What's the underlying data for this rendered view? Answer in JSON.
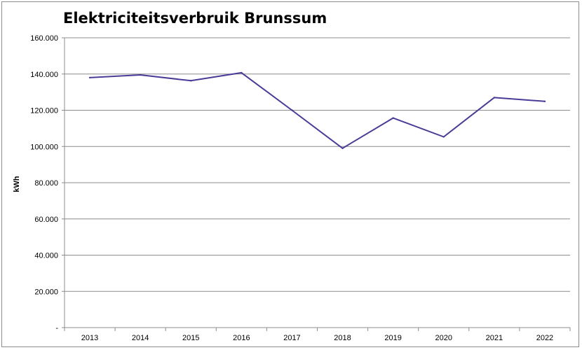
{
  "chart_data": {
    "type": "line",
    "title": "Elektriciteitsverbruik Brunssum",
    "xlabel": "",
    "ylabel": "kWh",
    "categories": [
      "2013",
      "2014",
      "2015",
      "2016",
      "2017",
      "2018",
      "2019",
      "2020",
      "2021",
      "2022"
    ],
    "series": [
      {
        "values": [
          138000,
          139500,
          136300,
          140700,
          120000,
          99000,
          115700,
          105300,
          127000,
          124900
        ]
      }
    ],
    "ylim": [
      0,
      160000
    ],
    "yticks": [
      0,
      20000,
      40000,
      60000,
      80000,
      100000,
      120000,
      140000,
      160000
    ],
    "ytick_labels": [
      "-",
      "20.000",
      "40.000",
      "60.000",
      "80.000",
      "100.000",
      "120.000",
      "140.000",
      "160.000"
    ],
    "grid": true,
    "legend": "none",
    "colors": {
      "line": "#4b3a96",
      "grid": "#8c8c8c",
      "axis": "#8c8c8c"
    }
  }
}
